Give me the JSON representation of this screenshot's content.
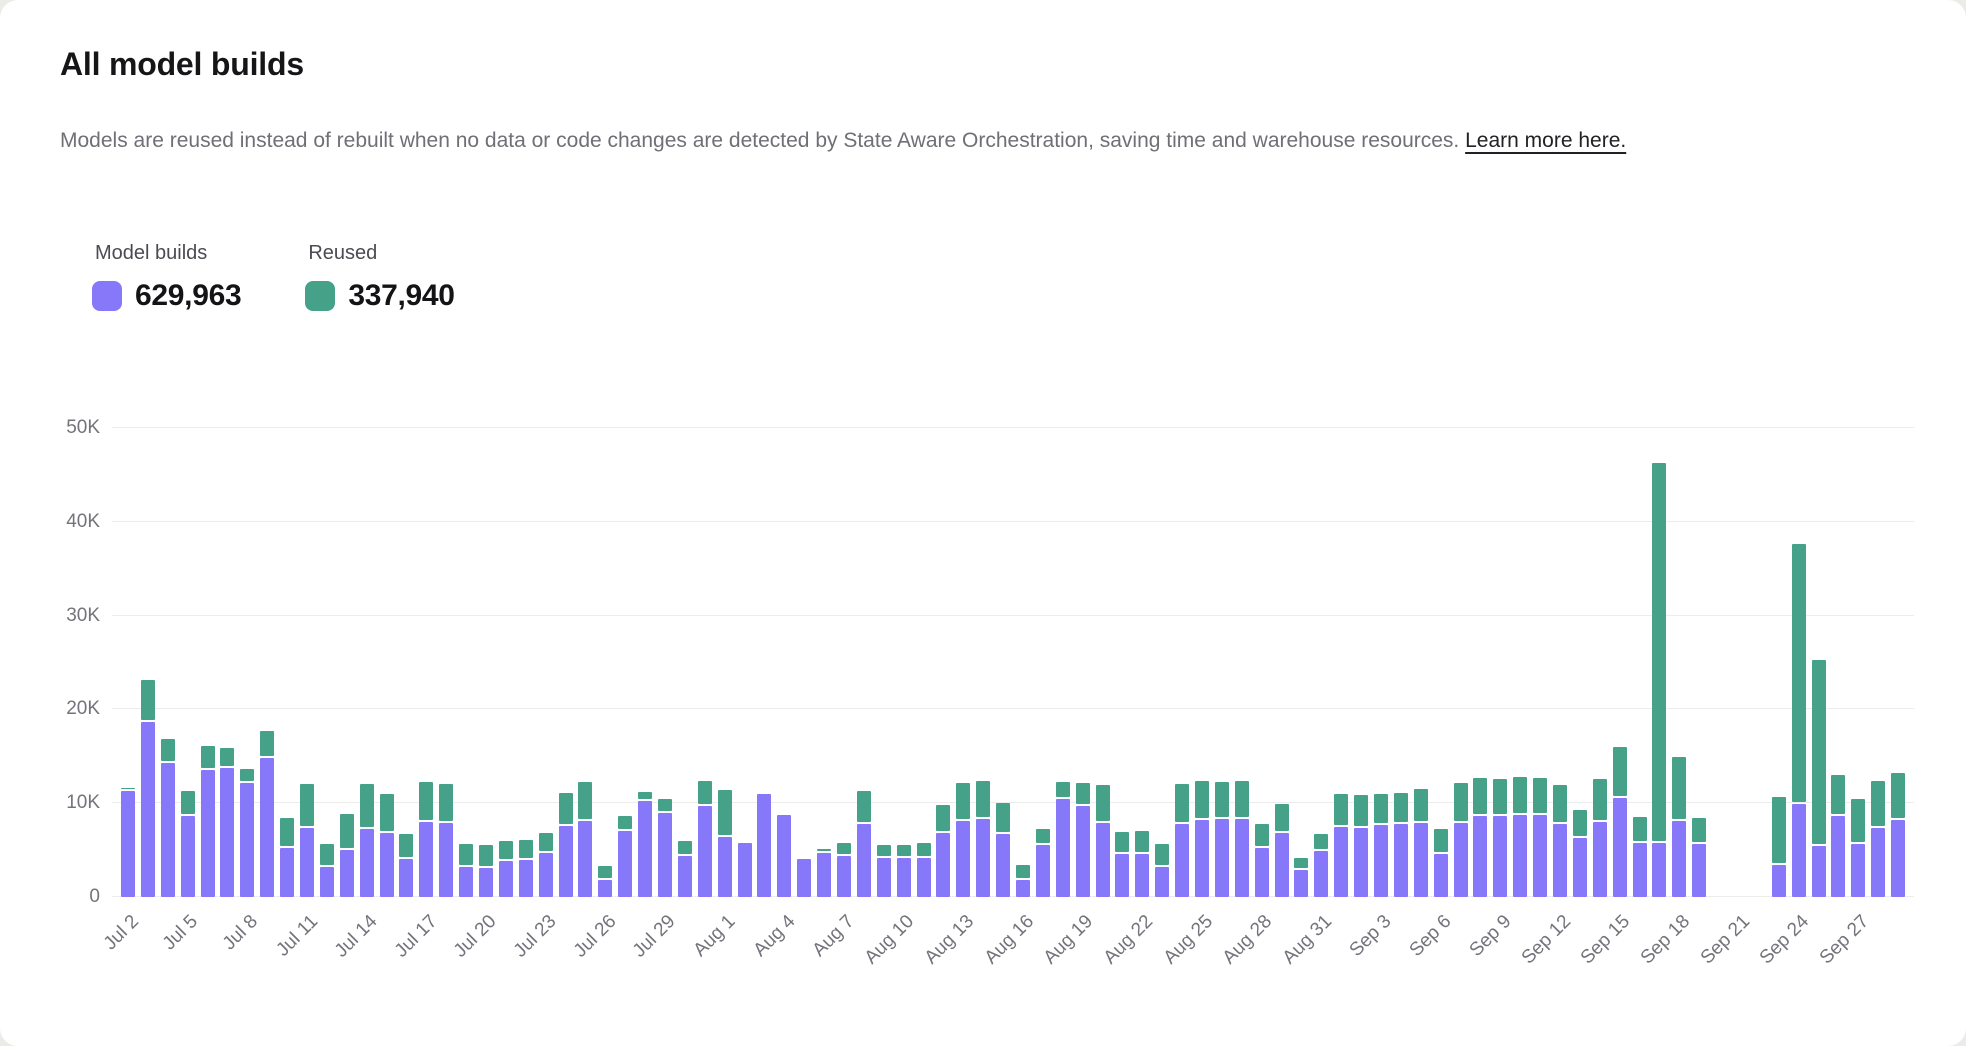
{
  "header": {
    "title": "All model builds",
    "description": "Models are reused instead of rebuilt when no data or code changes are detected by State Aware Orchestration, saving time and warehouse resources.",
    "link_text": "Learn more here."
  },
  "legend": {
    "items": [
      {
        "label": "Model builds",
        "value": "629,963",
        "color": "#8678F9"
      },
      {
        "label": "Reused",
        "value": "337,940",
        "color": "#46A189"
      }
    ]
  },
  "chart_data": {
    "type": "bar",
    "stacked": true,
    "grid": "horizontal",
    "legend_position": "top-left",
    "ylim": [
      0,
      50000
    ],
    "y_ticks": [
      "0",
      "10K",
      "20K",
      "30K",
      "40K",
      "50K"
    ],
    "x_tick_every": 3,
    "x": [
      "Jul 2",
      "Jul 3",
      "Jul 4",
      "Jul 5",
      "Jul 6",
      "Jul 7",
      "Jul 8",
      "Jul 9",
      "Jul 10",
      "Jul 11",
      "Jul 12",
      "Jul 13",
      "Jul 14",
      "Jul 15",
      "Jul 16",
      "Jul 17",
      "Jul 18",
      "Jul 19",
      "Jul 20",
      "Jul 21",
      "Jul 22",
      "Jul 23",
      "Jul 24",
      "Jul 25",
      "Jul 26",
      "Jul 27",
      "Jul 28",
      "Jul 29",
      "Jul 30",
      "Jul 31",
      "Aug 1",
      "Aug 2",
      "Aug 3",
      "Aug 4",
      "Aug 5",
      "Aug 6",
      "Aug 7",
      "Aug 8",
      "Aug 9",
      "Aug 10",
      "Aug 11",
      "Aug 12",
      "Aug 13",
      "Aug 14",
      "Aug 15",
      "Aug 16",
      "Aug 17",
      "Aug 18",
      "Aug 19",
      "Aug 20",
      "Aug 21",
      "Aug 22",
      "Aug 23",
      "Aug 24",
      "Aug 25",
      "Aug 26",
      "Aug 27",
      "Aug 28",
      "Aug 29",
      "Aug 30",
      "Aug 31",
      "Sep 1",
      "Sep 2",
      "Sep 3",
      "Sep 4",
      "Sep 5",
      "Sep 6",
      "Sep 7",
      "Sep 8",
      "Sep 9",
      "Sep 10",
      "Sep 11",
      "Sep 12",
      "Sep 13",
      "Sep 14",
      "Sep 15",
      "Sep 16",
      "Sep 17",
      "Sep 18",
      "Sep 19",
      "Sep 20",
      "Sep 21",
      "Sep 22",
      "Sep 23",
      "Sep 24",
      "Sep 25",
      "Sep 26",
      "Sep 27",
      "Sep 28",
      "Sep 29"
    ],
    "series": [
      {
        "name": "Model builds",
        "color": "#8678F9",
        "values": [
          11300,
          18700,
          14300,
          8600,
          13500,
          13800,
          12200,
          14800,
          5200,
          7400,
          3200,
          5000,
          7300,
          6800,
          4100,
          8000,
          7900,
          3200,
          3100,
          3800,
          3900,
          4700,
          7600,
          8100,
          1800,
          7000,
          10200,
          9000,
          4400,
          9700,
          6400,
          5800,
          11000,
          8700,
          4100,
          4700,
          4400,
          7800,
          4200,
          4200,
          4200,
          6800,
          8100,
          8300,
          6700,
          1800,
          5500,
          10400,
          9700,
          7900,
          4600,
          4600,
          3200,
          7800,
          8200,
          8300,
          8300,
          5200,
          6800,
          2900,
          4900,
          7500,
          7400,
          7700,
          7800,
          7900,
          4600,
          7900,
          8600,
          8600,
          8700,
          8700,
          7800,
          6300,
          8000,
          10600,
          5800,
          5800,
          8100,
          5700,
          0,
          0,
          0,
          3400,
          9900,
          5400,
          8600,
          5700,
          7400,
          8200
        ]
      },
      {
        "name": "Reused",
        "color": "#46A189",
        "values": [
          300,
          4400,
          2600,
          2700,
          2600,
          2100,
          1400,
          2900,
          3200,
          4600,
          2500,
          3800,
          4700,
          4200,
          2600,
          4300,
          4200,
          2400,
          2500,
          2200,
          2200,
          2100,
          3500,
          4200,
          1500,
          1600,
          1000,
          1400,
          1600,
          2700,
          5000,
          0,
          0,
          0,
          0,
          300,
          1400,
          3500,
          1300,
          1300,
          1600,
          3000,
          4100,
          4100,
          3300,
          1600,
          1700,
          1900,
          2500,
          4000,
          2300,
          2400,
          2400,
          4300,
          4200,
          4000,
          4100,
          2600,
          3100,
          1300,
          1800,
          3500,
          3500,
          3300,
          3300,
          3600,
          2700,
          4300,
          4100,
          4000,
          4100,
          4000,
          4100,
          3000,
          4600,
          5400,
          2700,
          40500,
          6800,
          2700,
          0,
          0,
          0,
          7300,
          27700,
          19900,
          4400,
          4700,
          5000,
          5000
        ]
      }
    ]
  }
}
